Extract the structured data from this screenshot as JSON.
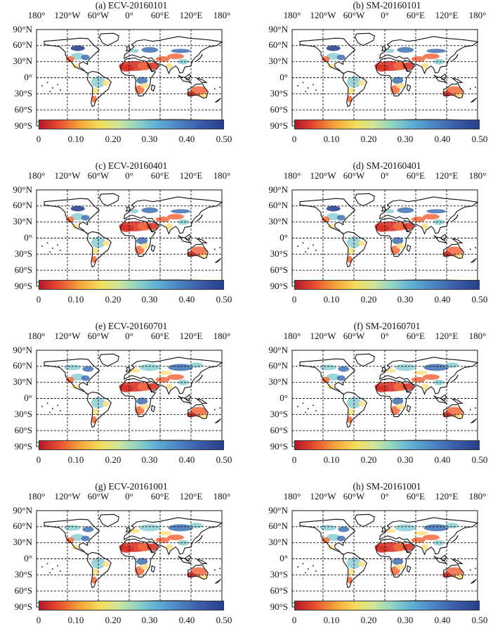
{
  "colors": {
    "dry": "#d73027",
    "orange": "#f46d43",
    "yellow": "#fee08b",
    "cyan": "#91cfd6",
    "blue": "#4575b4",
    "navy": "#27408b",
    "coast": "#111111",
    "grid": "#111111"
  },
  "axis": {
    "lon_labels": [
      "180°",
      "120°W",
      "60°W",
      "0°",
      "60°E",
      "120°E",
      "180°"
    ],
    "lat_labels": [
      "90°N",
      "60°N",
      "30°N",
      "0°",
      "30°S",
      "60°S",
      "90°S"
    ]
  },
  "colorbar_labels": [
    "0",
    "0.10",
    "0.20",
    "0.30",
    "0.40",
    "0.50"
  ],
  "panels": [
    {
      "title": "(a) ECV-20160101"
    },
    {
      "title": "(b) SM-20160101"
    },
    {
      "title": "(c) ECV-20160401"
    },
    {
      "title": "(d) SM-20160401"
    },
    {
      "title": "(e) ECV-20160701"
    },
    {
      "title": "(f) SM-20160701"
    },
    {
      "title": "(g) ECV-20161001"
    },
    {
      "title": "(h) SM-20161001"
    }
  ]
}
